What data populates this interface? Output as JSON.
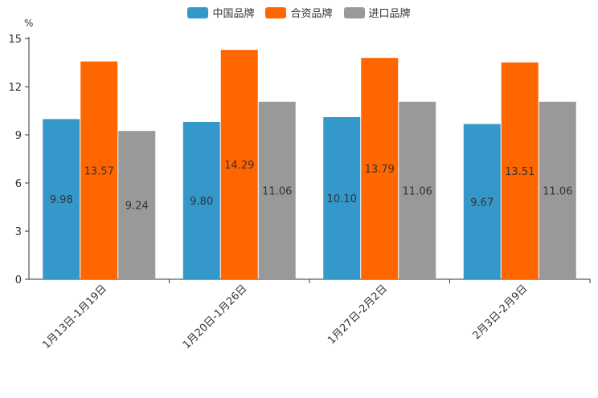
{
  "chart_data": {
    "type": "bar",
    "unit": "%",
    "categories": [
      "1月13日-1月19日",
      "1月20日-1月26日",
      "1月27日-2月2日",
      "2月3日-2月9日"
    ],
    "series": [
      {
        "name": "中国品牌",
        "color": "#3498cb",
        "values": [
          9.98,
          9.8,
          10.1,
          9.67
        ],
        "labels": [
          "9.98",
          "9.80",
          "10.10",
          "9.67"
        ]
      },
      {
        "name": "合资品牌",
        "color": "#ff6600",
        "values": [
          13.57,
          14.29,
          13.79,
          13.51
        ],
        "labels": [
          "13.57",
          "14.29",
          "13.79",
          "13.51"
        ]
      },
      {
        "name": "进口品牌",
        "color": "#999999",
        "values": [
          9.24,
          11.06,
          11.06,
          11.06
        ],
        "labels": [
          "9.24",
          "11.06",
          "11.06",
          "11.06"
        ]
      }
    ],
    "yticks": [
      "0",
      "3",
      "6",
      "9",
      "12",
      "15"
    ],
    "ylim": [
      0,
      15
    ],
    "legend_position": "top-center",
    "grid": false
  }
}
